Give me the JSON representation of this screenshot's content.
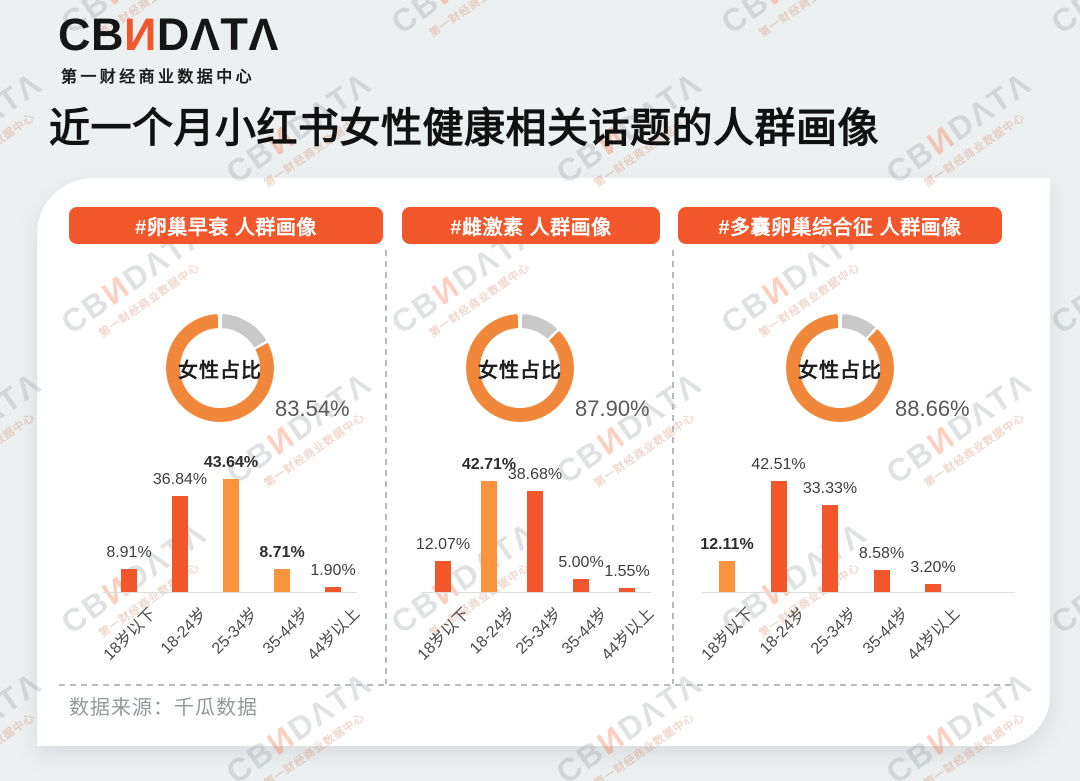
{
  "brand": {
    "logo_prefix": "CB",
    "logo_n": "И",
    "logo_suffix": "DΛTΛ",
    "subtitle": "第一财经商业数据中心"
  },
  "page_title": "近一个月小红书女性健康相关话题的人群画像",
  "watermark": {
    "text_prefix": "CB",
    "text_n": "И",
    "text_suffix": "DΛTΛ",
    "subtext": "第一财经商业数据中心"
  },
  "footer": {
    "source": "数据来源：千瓜数据"
  },
  "colors": {
    "accent_red": "#F2562B",
    "accent_orange": "#F7943C",
    "donut_orange": "#F0873A",
    "donut_gray": "#C9C9C9",
    "page_bg": "#EDF0F1",
    "card_bg": "#FFFFFF"
  },
  "chart_data": [
    {
      "panel_title": "#卵巢早衰 人群画像",
      "donut": {
        "type": "pie",
        "center_label": "女性占比",
        "female_pct": 83.54,
        "female_display": "83.54%",
        "other_pct": 16.46
      },
      "bars": {
        "type": "bar",
        "categories": [
          "18岁以下",
          "18-24岁",
          "25-34岁",
          "35-44岁",
          "44岁以上"
        ],
        "values": [
          8.91,
          36.84,
          43.64,
          8.71,
          1.9
        ],
        "value_labels": [
          "8.91%",
          "36.84%",
          "43.64%",
          "8.71%",
          "1.90%"
        ],
        "highlight_indices": [
          2,
          3
        ],
        "ylim": [
          0,
          50
        ]
      }
    },
    {
      "panel_title": "#雌激素 人群画像",
      "donut": {
        "type": "pie",
        "center_label": "女性占比",
        "female_pct": 87.9,
        "female_display": "87.90%",
        "other_pct": 12.1
      },
      "bars": {
        "type": "bar",
        "categories": [
          "18岁以下",
          "18-24岁",
          "25-34岁",
          "35-44岁",
          "44岁以上"
        ],
        "values": [
          12.07,
          42.71,
          38.68,
          5.0,
          1.55
        ],
        "value_labels": [
          "12.07%",
          "42.71%",
          "38.68%",
          "5.00%",
          "1.55%"
        ],
        "highlight_indices": [
          1
        ],
        "ylim": [
          0,
          50
        ]
      }
    },
    {
      "panel_title": "#多囊卵巢综合征 人群画像",
      "donut": {
        "type": "pie",
        "center_label": "女性占比",
        "female_pct": 88.66,
        "female_display": "88.66%",
        "other_pct": 11.34
      },
      "bars": {
        "type": "bar",
        "categories": [
          "18岁以下",
          "18-24岁",
          "25-34岁",
          "35-44岁",
          "44岁以上"
        ],
        "values": [
          12.11,
          42.51,
          33.33,
          8.58,
          3.2
        ],
        "value_labels": [
          "12.11%",
          "42.51%",
          "33.33%",
          "8.58%",
          "3.20%"
        ],
        "highlight_indices": [
          0
        ],
        "ylim": [
          0,
          50
        ]
      }
    }
  ]
}
